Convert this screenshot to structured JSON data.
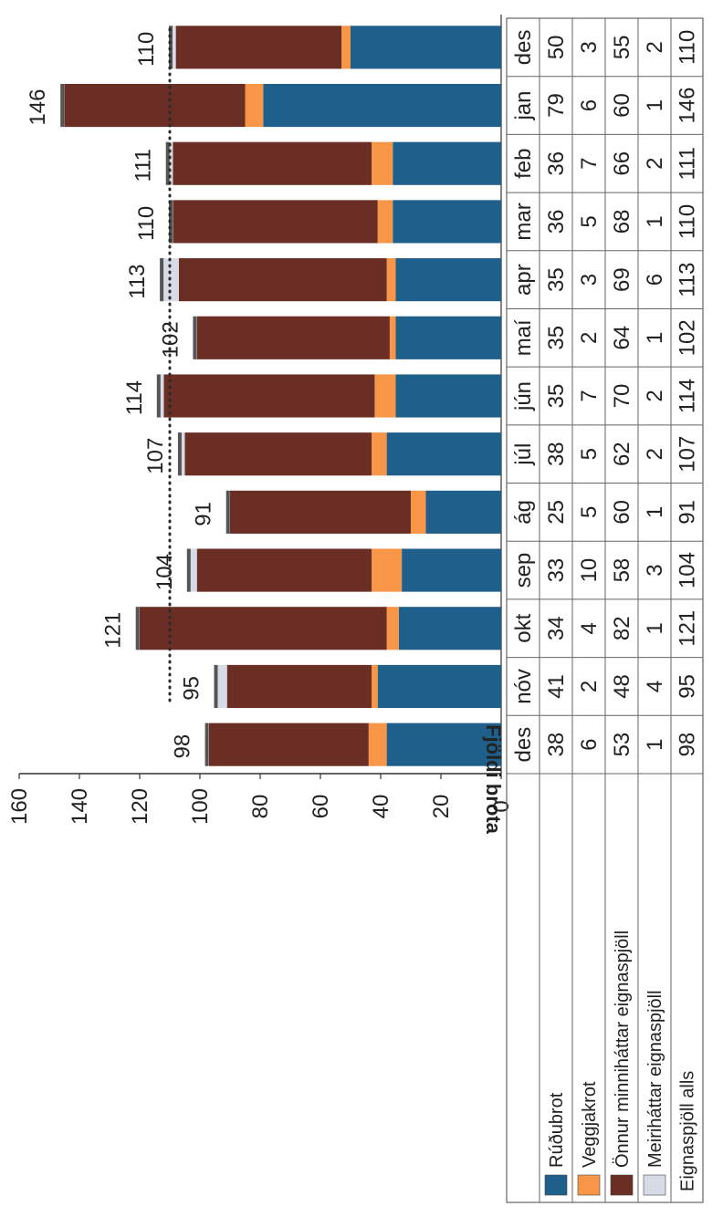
{
  "chart_data": {
    "type": "bar",
    "stacked": true,
    "orientation": "rotated-90-clockwise",
    "ylabel": "Fjöldi brota",
    "ylim": [
      0,
      160
    ],
    "yticks": [
      0,
      20,
      40,
      60,
      80,
      100,
      120,
      140,
      160
    ],
    "categories": [
      "des",
      "jan",
      "feb",
      "mar",
      "apr",
      "maí",
      "jún",
      "júl",
      "ág",
      "sep",
      "okt",
      "nóv",
      "des"
    ],
    "series": [
      {
        "name": "Rúðubrot",
        "color": "#1f5f8b",
        "values": [
          50,
          79,
          36,
          36,
          35,
          35,
          35,
          38,
          25,
          33,
          34,
          41,
          38
        ]
      },
      {
        "name": "Veggjakrot",
        "color": "#f79646",
        "values": [
          3,
          6,
          7,
          5,
          3,
          2,
          7,
          5,
          5,
          10,
          4,
          2,
          6
        ]
      },
      {
        "name": "Önnur minniháttar eignaspjöll",
        "color": "#6b2e24",
        "values": [
          55,
          60,
          66,
          68,
          69,
          64,
          70,
          62,
          60,
          58,
          82,
          48,
          53
        ]
      },
      {
        "name": "Meiriháttar eignaspjöll",
        "color": "#d6dbe6",
        "values": [
          2,
          1,
          2,
          1,
          6,
          1,
          2,
          2,
          1,
          3,
          1,
          4,
          1
        ]
      }
    ],
    "totals_label": "Eignaspjöll alls",
    "totals": [
      110,
      146,
      111,
      110,
      113,
      102,
      114,
      107,
      91,
      104,
      121,
      95,
      98
    ],
    "average_line": {
      "value": 110,
      "style": "dotted"
    },
    "legend": "table-rows"
  }
}
